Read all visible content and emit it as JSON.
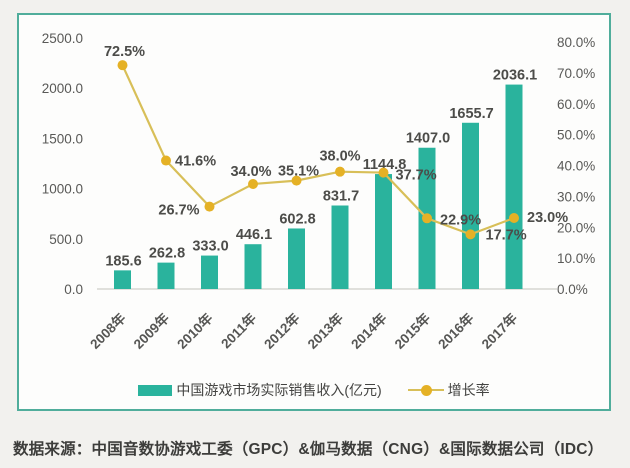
{
  "chart_data": {
    "type": "bar",
    "title": "",
    "categories": [
      "2008年",
      "2009年",
      "2010年",
      "2011年",
      "2012年",
      "2013年",
      "2014年",
      "2015年",
      "2016年",
      "2017年"
    ],
    "series": [
      {
        "name": "中国游戏市场实际销售收入(亿元)",
        "type": "bar",
        "unit": "亿元",
        "color": "#2ab39d",
        "values": [
          185.6,
          262.8,
          333.0,
          446.1,
          602.8,
          831.7,
          1144.8,
          1407.0,
          1655.7,
          2036.1
        ],
        "labels": [
          "185.6",
          "262.8",
          "333.0",
          "446.1",
          "602.8",
          "831.7",
          "1144.8",
          "1407.0",
          "1655.7",
          "2036.1"
        ]
      },
      {
        "name": "增长率",
        "type": "line",
        "unit": "%",
        "color": "#d8bf58",
        "marker_color": "#e5b125",
        "values": [
          72.5,
          41.6,
          26.7,
          34.0,
          35.1,
          38.0,
          37.7,
          22.9,
          17.7,
          23.0
        ],
        "labels": [
          "72.5%",
          "41.6%",
          "26.7%",
          "34.0%",
          "35.1%",
          "38.0%",
          "37.7%",
          "22.9%",
          "17.7%",
          "23.0%"
        ]
      }
    ],
    "left_axis": {
      "min": 0,
      "max": 2500,
      "ticks": [
        "2500.0",
        "2000.0",
        "1500.0",
        "1000.0",
        "500.0",
        "0.0"
      ]
    },
    "right_axis": {
      "min": 0,
      "max": 80,
      "ticks": [
        "80.0%",
        "70.0%",
        "60.0%",
        "50.0%",
        "40.0%",
        "30.0%",
        "20.0%",
        "10.0%",
        "0.0%"
      ]
    },
    "grid": false,
    "legend_position": "bottom"
  },
  "footer": {
    "source": "数据来源：中国音数协游戏工委（GPC）&伽马数据（CNG）&国际数据公司（IDC）"
  },
  "colors": {
    "bar": "#2ab39d",
    "line": "#d8bf58",
    "marker": "#e5b125",
    "panel_border": "#50ad9b",
    "axis_line": "#d6d6d2",
    "axis_text": "#595957",
    "label_text": "#4c4c49"
  }
}
